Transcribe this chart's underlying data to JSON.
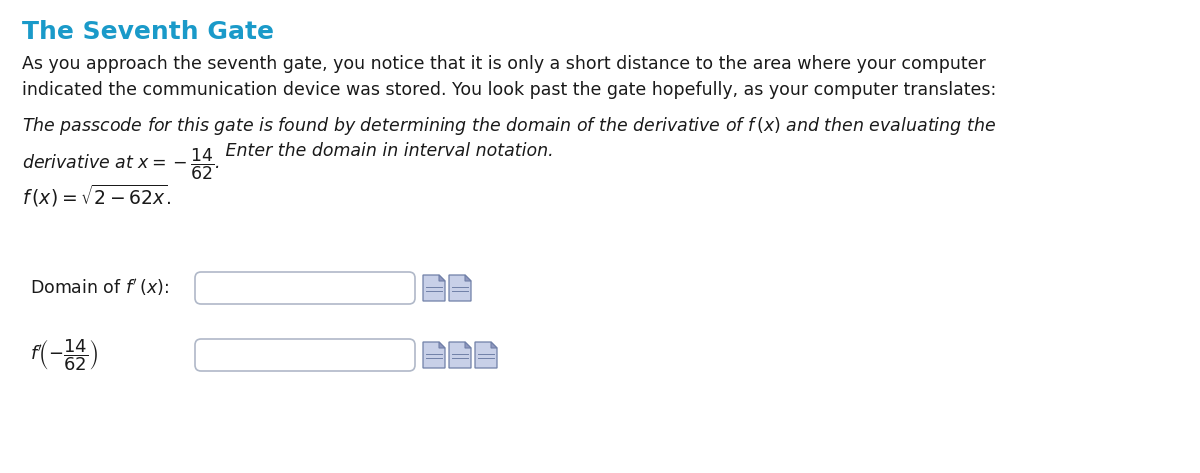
{
  "title": "The Seventh Gate",
  "title_color": "#1a9ac9",
  "title_fontsize": 18,
  "body_text": "As you approach the seventh gate, you notice that it is only a short distance to the area where your computer\nindicated the communication device was stored. You look past the gate hopefully, as your computer translates:",
  "body_fontsize": 12.5,
  "italic_line1": "The passcode for this gate is found by determining the domain of the derivative of $f\\,(x)$ and then evaluating the",
  "italic_line2a": "derivative at $x = -\\dfrac{14}{62}$.",
  "italic_line2b": " Enter the domain in interval notation.",
  "function_text": "$f\\,(x) = \\sqrt{2 - 62x}.$",
  "domain_label": "Domain of $f^{\\prime}\\,(x)$:",
  "eval_label": "$f^{\\prime}\\!\\left(-\\dfrac{14}{62}\\right)$",
  "background_color": "#ffffff",
  "text_color": "#1a1a1a",
  "box_edgecolor": "#b0b8c8",
  "box_facecolor": "#f0f2f8",
  "icon_face": "#c8d0e8",
  "icon_edge": "#7080a8",
  "icon_fold": "#9098c0"
}
